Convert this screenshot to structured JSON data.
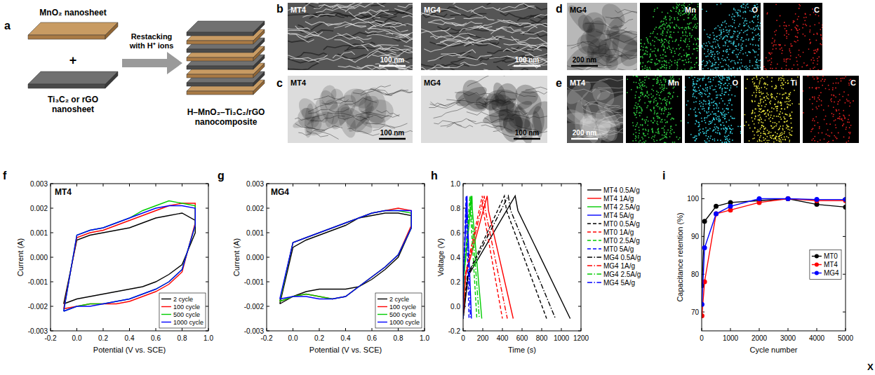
{
  "panel_labels": [
    "a",
    "b",
    "c",
    "d",
    "e",
    "f",
    "g",
    "h",
    "i"
  ],
  "schematic": {
    "top_label": "MnO₂ nanosheet",
    "plus": "+",
    "bottom_label": [
      "Ti₃C₂ or rGO",
      "nanosheet"
    ],
    "arrow_label": [
      "Restacking",
      "with H⁺ ions"
    ],
    "product_label": [
      "H–MnO₂–Ti₃C₂/rGO",
      "nanocomposite"
    ]
  },
  "micrographs": {
    "b": [
      {
        "label": "MT4",
        "scale_bar": "100 nm"
      },
      {
        "label": "MG4",
        "scale_bar": "100 nm"
      }
    ],
    "c": [
      {
        "label": "MT4",
        "scale_bar": "100 nm"
      },
      {
        "label": "MG4",
        "scale_bar": "100 nm"
      }
    ],
    "d": {
      "label": "MG4",
      "scale_bar": "200 nm",
      "maps": [
        {
          "element": "Mn",
          "color": "#2ecc40"
        },
        {
          "element": "O",
          "color": "#39c6d6"
        },
        {
          "element": "C",
          "color": "#e02020"
        }
      ]
    },
    "e": {
      "label": "MT4",
      "scale_bar": "200 nm",
      "maps": [
        {
          "element": "Mn",
          "color": "#2ecc40"
        },
        {
          "element": "O",
          "color": "#33d4e6"
        },
        {
          "element": "Ti",
          "color": "#e6e23a"
        },
        {
          "element": "C",
          "color": "#e02020"
        }
      ]
    }
  },
  "chart_data": [
    {
      "type": "line",
      "title": "MT4",
      "xlabel": "Potential (V vs. SCE)",
      "ylabel": "Current (A)",
      "x": [
        -0.1,
        0,
        0.1,
        0.2,
        0.3,
        0.4,
        0.5,
        0.6,
        0.7,
        0.8,
        0.9,
        0.9,
        0.8,
        0.7,
        0.6,
        0.5,
        0.4,
        0.3,
        0.2,
        0.1,
        0,
        -0.1
      ],
      "xlim": [
        -0.2,
        1.0
      ],
      "xticks": [
        -0.2,
        {
          "value": 0,
          "label": "0.0"
        },
        0.2,
        0.4,
        0.6,
        0.8,
        {
          "value": 1,
          "label": "1.0"
        }
      ],
      "ylim": [
        -0.003,
        0.003
      ],
      "yticks": [
        -0.003,
        -0.002,
        -0.001,
        {
          "value": 0,
          "label": "0.000"
        },
        0.001,
        0.002,
        0.003
      ],
      "legend": "lower right",
      "series": [
        {
          "name": "2 cycle",
          "color": "#000000",
          "line_style": "solid",
          "values": [
            -0.0019,
            0.0007,
            0.0009,
            0.001,
            0.0011,
            0.0012,
            0.0014,
            0.0016,
            0.0017,
            0.0018,
            0.0015,
            0.001,
            -0.0003,
            -0.0007,
            -0.001,
            -0.0012,
            -0.0013,
            -0.0014,
            -0.0015,
            -0.0016,
            -0.0017,
            -0.0019
          ]
        },
        {
          "name": "100 cycle",
          "color": "#ff0000",
          "line_style": "solid",
          "values": [
            -0.0021,
            0.0008,
            0.001,
            0.0011,
            0.0013,
            0.0015,
            0.0017,
            0.0019,
            0.0021,
            0.0022,
            0.0022,
            0.0014,
            -0.0006,
            -0.0011,
            -0.0014,
            -0.0016,
            -0.0018,
            -0.0019,
            -0.0019,
            -0.0019,
            -0.002,
            -0.0021
          ]
        },
        {
          "name": "500 cycle",
          "color": "#00cc00",
          "line_style": "solid",
          "values": [
            -0.0022,
            0.0009,
            0.0011,
            0.0012,
            0.0014,
            0.0016,
            0.0019,
            0.0021,
            0.0023,
            0.0022,
            0.0021,
            0.0013,
            -0.0005,
            -0.001,
            -0.0013,
            -0.0015,
            -0.0017,
            -0.0018,
            -0.0019,
            -0.0019,
            -0.002,
            -0.0022
          ]
        },
        {
          "name": "1000 cycle",
          "color": "#0000ff",
          "line_style": "solid",
          "values": [
            -0.0022,
            0.0009,
            0.0011,
            0.0012,
            0.0014,
            0.0016,
            0.0018,
            0.002,
            0.0021,
            0.0021,
            0.002,
            0.0013,
            -0.0005,
            -0.001,
            -0.0013,
            -0.0015,
            -0.0017,
            -0.0018,
            -0.0019,
            -0.002,
            -0.002,
            -0.0022
          ]
        }
      ]
    },
    {
      "type": "line",
      "title": "MG4",
      "xlabel": "Potential (V vs. SCE)",
      "ylabel": "Current (A)",
      "x": [
        -0.1,
        0,
        0.1,
        0.2,
        0.3,
        0.4,
        0.5,
        0.6,
        0.7,
        0.8,
        0.9,
        0.9,
        0.8,
        0.7,
        0.6,
        0.5,
        0.4,
        0.3,
        0.2,
        0.1,
        0,
        -0.1
      ],
      "xlim": [
        -0.2,
        1.0
      ],
      "xticks": [
        -0.2,
        {
          "value": 0,
          "label": "0.0"
        },
        0.2,
        0.4,
        0.6,
        0.8,
        {
          "value": 1,
          "label": "1.0"
        }
      ],
      "ylim": [
        -0.003,
        0.003
      ],
      "yticks": [
        -0.003,
        -0.002,
        -0.001,
        {
          "value": 0,
          "label": "0.000"
        },
        0.001,
        0.002,
        0.003
      ],
      "legend": "lower right",
      "series": [
        {
          "name": "2 cycle",
          "color": "#000000",
          "line_style": "solid",
          "values": [
            -0.0019,
            0.0004,
            0.0007,
            0.0009,
            0.0011,
            0.0013,
            0.0016,
            0.0017,
            0.0018,
            0.0018,
            0.0017,
            0.0012,
            0.0,
            -0.0005,
            -0.0009,
            -0.0012,
            -0.0013,
            -0.0013,
            -0.0013,
            -0.0014,
            -0.0016,
            -0.0019
          ]
        },
        {
          "name": "100 cycle",
          "color": "#ff0000",
          "line_style": "solid",
          "values": [
            -0.0018,
            0.0006,
            0.0008,
            0.001,
            0.0012,
            0.0014,
            0.0016,
            0.0018,
            0.0019,
            0.002,
            0.0019,
            0.0013,
            0.0001,
            -0.0004,
            -0.0008,
            -0.0012,
            -0.0016,
            -0.0017,
            -0.0016,
            -0.0015,
            -0.0016,
            -0.0018
          ]
        },
        {
          "name": "500 cycle",
          "color": "#00cc00",
          "line_style": "solid",
          "values": [
            -0.0018,
            0.0006,
            0.0008,
            0.001,
            0.0012,
            0.0014,
            0.0016,
            0.0018,
            0.0019,
            0.0019,
            0.0018,
            0.0012,
            0.0001,
            -0.0004,
            -0.0008,
            -0.0012,
            -0.0016,
            -0.0017,
            -0.0016,
            -0.0015,
            -0.0016,
            -0.0018
          ]
        },
        {
          "name": "1000 cycle",
          "color": "#0000ff",
          "line_style": "solid",
          "values": [
            -0.0017,
            0.0006,
            0.0008,
            0.001,
            0.0012,
            0.0014,
            0.0016,
            0.0018,
            0.0019,
            0.0019,
            0.0019,
            0.0012,
            0.0001,
            -0.0004,
            -0.0008,
            -0.0012,
            -0.0016,
            -0.0017,
            -0.0017,
            -0.0016,
            -0.0016,
            -0.0017
          ]
        }
      ]
    },
    {
      "type": "line",
      "xlabel": "Time (s)",
      "ylabel": "Voltage (V)",
      "xlim": [
        0,
        1200
      ],
      "xticks": [
        0,
        200,
        400,
        600,
        800,
        1000,
        1200
      ],
      "ylim": [
        -0.2,
        1.0
      ],
      "yticks": [
        -0.2,
        {
          "value": 0,
          "label": "0.0"
        },
        0.2,
        0.4,
        0.6,
        0.8,
        {
          "value": 1,
          "label": "1.0"
        }
      ],
      "legend": "right",
      "series": [
        {
          "name": "MT4 0.5A/g",
          "color": "#000000",
          "line_style": "solid",
          "x": [
            0,
            53,
            530,
            558,
            1090
          ],
          "values": [
            -0.1,
            0.25,
            0.9,
            0.78,
            -0.1
          ]
        },
        {
          "name": "MT4 1A/g",
          "color": "#ff0000",
          "line_style": "solid",
          "x": [
            0,
            25,
            245,
            258,
            510
          ],
          "values": [
            -0.1,
            0.25,
            0.9,
            0.78,
            -0.1
          ]
        },
        {
          "name": "MT4 2.5A/g",
          "color": "#00cc00",
          "line_style": "solid",
          "x": [
            0,
            9,
            90,
            95,
            190
          ],
          "values": [
            -0.1,
            0.25,
            0.9,
            0.78,
            -0.1
          ]
        },
        {
          "name": "MT4 5A/g",
          "color": "#0000ff",
          "line_style": "solid",
          "x": [
            0,
            4,
            40,
            42,
            85
          ],
          "values": [
            -0.1,
            0.25,
            0.9,
            0.78,
            -0.1
          ]
        },
        {
          "name": "MT0 0.5A/g",
          "color": "#000000",
          "line_style": "dashed",
          "x": [
            0,
            42,
            420,
            442,
            850
          ],
          "values": [
            -0.1,
            0.25,
            0.9,
            0.78,
            -0.1
          ]
        },
        {
          "name": "MT0 1A/g",
          "color": "#ff0000",
          "line_style": "dashed",
          "x": [
            0,
            20,
            195,
            205,
            400
          ],
          "values": [
            -0.1,
            0.25,
            0.9,
            0.78,
            -0.1
          ]
        },
        {
          "name": "MT0 2.5A/g",
          "color": "#00cc00",
          "line_style": "dashed",
          "x": [
            0,
            7,
            70,
            74,
            140
          ],
          "values": [
            -0.1,
            0.25,
            0.9,
            0.78,
            -0.1
          ]
        },
        {
          "name": "MT0 5A/g",
          "color": "#0000ff",
          "line_style": "dashed",
          "x": [
            0,
            3,
            30,
            32,
            60
          ],
          "values": [
            -0.1,
            0.25,
            0.9,
            0.78,
            -0.1
          ]
        },
        {
          "name": "MG4 0.5A/g",
          "color": "#000000",
          "line_style": "dashdot",
          "x": [
            0,
            46,
            460,
            484,
            940
          ],
          "values": [
            -0.1,
            0.25,
            0.9,
            0.78,
            -0.1
          ]
        },
        {
          "name": "MG4 1A/g",
          "color": "#ff0000",
          "line_style": "dashdot",
          "x": [
            0,
            22,
            215,
            227,
            450
          ],
          "values": [
            -0.1,
            0.25,
            0.9,
            0.78,
            -0.1
          ]
        },
        {
          "name": "MG4 2.5A/g",
          "color": "#00cc00",
          "line_style": "dashdot",
          "x": [
            0,
            8,
            80,
            84,
            165
          ],
          "values": [
            -0.1,
            0.25,
            0.9,
            0.78,
            -0.1
          ]
        },
        {
          "name": "MG4 5A/g",
          "color": "#0000ff",
          "line_style": "dashdot",
          "x": [
            0,
            4,
            35,
            37,
            75
          ],
          "values": [
            -0.1,
            0.25,
            0.9,
            0.78,
            -0.1
          ]
        }
      ]
    },
    {
      "type": "line",
      "xlabel": "Cycle number",
      "ylabel": "Capacitance retention (%)",
      "marker": "circle",
      "x": [
        10,
        100,
        500,
        1000,
        2000,
        3000,
        4000,
        5000
      ],
      "xlim": [
        0,
        5000
      ],
      "xticks": [
        0,
        1000,
        2000,
        3000,
        4000,
        5000
      ],
      "ylim": [
        65,
        104
      ],
      "yticks": [
        70,
        80,
        90,
        100
      ],
      "legend": "center right",
      "series": [
        {
          "name": "MT0",
          "color": "#000000",
          "line_style": "solid",
          "values": [
            77,
            94,
            98,
            99,
            99.5,
            100,
            98.5,
            97.8
          ]
        },
        {
          "name": "MT4",
          "color": "#ff0000",
          "line_style": "solid",
          "values": [
            69,
            78,
            96,
            97,
            99,
            100,
            99.5,
            99.5
          ]
        },
        {
          "name": "MG4",
          "color": "#0000ff",
          "line_style": "solid",
          "values": [
            72,
            87,
            96,
            98,
            100,
            100,
            99.8,
            99.8
          ]
        }
      ]
    }
  ],
  "footer_mark": "X"
}
